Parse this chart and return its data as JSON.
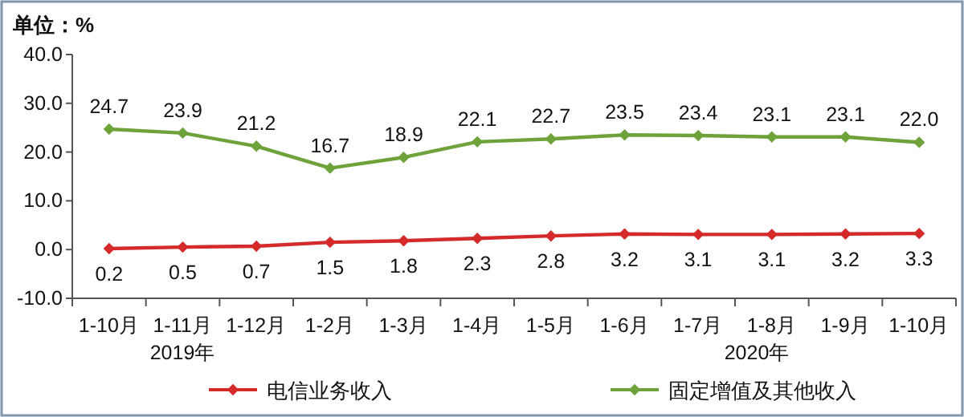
{
  "chart_data": {
    "type": "line",
    "ylabel": "单位：%",
    "categories": [
      "1-10月",
      "1-11月",
      "1-12月",
      "1-2月",
      "1-3月",
      "1-4月",
      "1-5月",
      "1-6月",
      "1-7月",
      "1-8月",
      "1-9月",
      "1-10月"
    ],
    "series": [
      {
        "name": "电信业务收入",
        "color": "#d42a2a",
        "values": [
          0.2,
          0.5,
          0.7,
          1.5,
          1.8,
          2.3,
          2.8,
          3.2,
          3.1,
          3.1,
          3.2,
          3.3
        ],
        "value_labels": [
          "0.2",
          "0.5",
          "0.7",
          "1.5",
          "1.8",
          "2.3",
          "2.8",
          "3.2",
          "3.1",
          "3.1",
          "3.2",
          "3.3"
        ]
      },
      {
        "name": "固定增值及其他收入",
        "color": "#6ea23a",
        "values": [
          24.7,
          23.9,
          21.2,
          16.7,
          18.9,
          22.1,
          22.7,
          23.5,
          23.4,
          23.1,
          23.1,
          22.0
        ],
        "value_labels": [
          "24.7",
          "23.9",
          "21.2",
          "16.7",
          "18.9",
          "22.1",
          "22.7",
          "23.5",
          "23.4",
          "23.1",
          "23.1",
          "22.0"
        ]
      }
    ],
    "ylim": [
      -10,
      40
    ],
    "yticks": [
      {
        "value": -10,
        "label": "-10.0"
      },
      {
        "value": 0,
        "label": "0.0"
      },
      {
        "value": 10,
        "label": "10.0"
      },
      {
        "value": 20,
        "label": "20.0"
      },
      {
        "value": 30,
        "label": "30.0"
      },
      {
        "value": 40,
        "label": "40.0"
      }
    ],
    "annotations": [
      "2019年",
      "2020年"
    ],
    "marker": "diamond",
    "line_style": "solid",
    "legend": "bottom",
    "grid": false
  }
}
